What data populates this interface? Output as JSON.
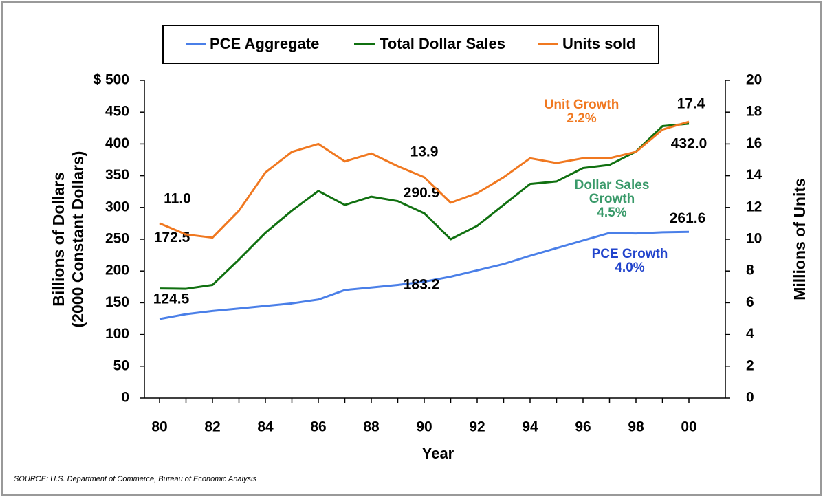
{
  "chart_data": {
    "type": "line",
    "legend": "top",
    "xlabel": "Year",
    "ylabel": [
      "Billions of Dollars",
      "(2000 Constant Dollars)"
    ],
    "y2label": "Millions of Units",
    "source": "SOURCE:  U.S. Department of Commerce, Bureau of Economic Analysis",
    "categories": [
      "80",
      null,
      "82",
      null,
      "84",
      null,
      "86",
      null,
      "88",
      null,
      "90",
      null,
      "92",
      null,
      "94",
      null,
      "96",
      null,
      "98",
      null,
      "00"
    ],
    "ylim": [
      0,
      500
    ],
    "yticks": [
      0,
      50,
      100,
      150,
      200,
      250,
      300,
      350,
      400,
      450,
      {
        "value": 500,
        "label": "$ 500"
      }
    ],
    "y2lim": [
      0,
      20
    ],
    "y2ticks": [
      0,
      2,
      4,
      6,
      8,
      10,
      12,
      14,
      16,
      18,
      20
    ],
    "series": [
      {
        "name": "PCE Aggregate",
        "color": "#4a7fe8",
        "values": [
          124.5,
          132,
          137,
          141,
          145,
          149,
          155,
          170,
          174,
          178,
          183.2,
          191,
          201,
          211,
          224,
          236,
          248,
          260,
          259,
          261,
          261.6
        ],
        "value_labels": [
          "124.5",
          null,
          null,
          null,
          null,
          null,
          null,
          null,
          null,
          null,
          "183.2",
          null,
          null,
          null,
          null,
          null,
          null,
          null,
          null,
          null,
          "261.6"
        ]
      },
      {
        "name": "Total Dollar Sales",
        "color": "#107010",
        "values": [
          172.5,
          172,
          178,
          218,
          260,
          295,
          326,
          304,
          317,
          310,
          290.9,
          250,
          271,
          304,
          337,
          341,
          362,
          367,
          388,
          428,
          432.0
        ],
        "value_labels": [
          "172.5",
          null,
          null,
          null,
          null,
          null,
          null,
          null,
          null,
          null,
          "290.9",
          null,
          null,
          null,
          null,
          null,
          null,
          null,
          null,
          null,
          "432.0"
        ]
      },
      {
        "name": "Units sold",
        "color": "#f07820",
        "axis": "y2",
        "values": [
          11.0,
          10.3,
          10.1,
          11.8,
          14.2,
          15.5,
          16.0,
          14.9,
          15.4,
          14.6,
          13.9,
          12.3,
          12.9,
          13.9,
          15.1,
          14.8,
          15.1,
          15.1,
          15.5,
          16.9,
          17.4
        ],
        "value_labels": [
          "11.0",
          null,
          null,
          null,
          null,
          null,
          null,
          null,
          null,
          null,
          "13.9",
          null,
          null,
          null,
          null,
          null,
          null,
          null,
          null,
          null,
          "17.4"
        ]
      }
    ],
    "annotations": [
      {
        "lines": [
          "Unit Growth",
          "2.2%"
        ],
        "color": "#f07820"
      },
      {
        "lines": [
          "Dollar Sales",
          "Growth",
          "4.5%"
        ],
        "color": "#3a9a6a"
      },
      {
        "lines": [
          "PCE Growth",
          "4.0%"
        ],
        "color": "#2244cc"
      }
    ]
  }
}
